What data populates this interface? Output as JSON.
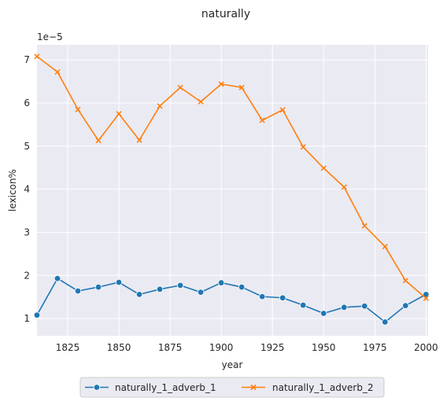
{
  "chart_data": {
    "type": "line",
    "title": "naturally",
    "xlabel": "year",
    "ylabel": "lexicon%",
    "offset_label": "1e−5",
    "xlim": [
      1810,
      2001
    ],
    "ylim": [
      0.6,
      7.35
    ],
    "x_ticks": [
      1825,
      1850,
      1875,
      1900,
      1925,
      1950,
      1975,
      2000
    ],
    "y_ticks": [
      1,
      2,
      3,
      4,
      5,
      6,
      7
    ],
    "grid": true,
    "legend_position": "bottom-center",
    "x": [
      1810,
      1820,
      1830,
      1840,
      1850,
      1860,
      1870,
      1880,
      1890,
      1900,
      1910,
      1920,
      1930,
      1940,
      1950,
      1960,
      1970,
      1980,
      1990,
      2000
    ],
    "series": [
      {
        "name": "naturally_1_adverb_1",
        "color": "#1f77b4",
        "marker": "circle",
        "values": [
          1.08,
          1.93,
          1.64,
          1.73,
          1.84,
          1.56,
          1.68,
          1.77,
          1.61,
          1.83,
          1.73,
          1.51,
          1.48,
          1.31,
          1.12,
          1.26,
          1.29,
          0.92,
          1.3,
          1.56
        ]
      },
      {
        "name": "naturally_1_adverb_2",
        "color": "#ff7f0e",
        "marker": "x",
        "values": [
          7.08,
          6.72,
          5.85,
          5.13,
          5.75,
          5.14,
          5.93,
          6.36,
          6.03,
          6.44,
          6.36,
          5.6,
          5.84,
          4.98,
          4.49,
          4.05,
          3.15,
          2.67,
          1.88,
          1.47
        ]
      }
    ]
  }
}
